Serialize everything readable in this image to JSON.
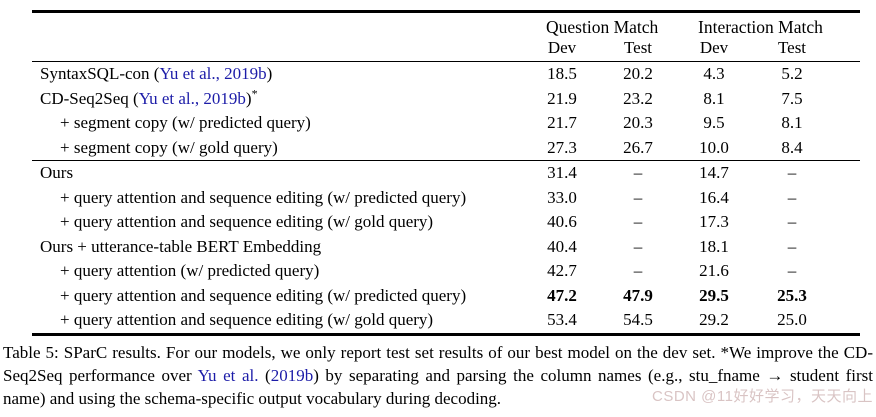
{
  "table": {
    "group_headers": [
      "Question Match",
      "Interaction Match"
    ],
    "sub_headers": [
      "Dev",
      "Test",
      "Dev",
      "Test"
    ],
    "groups": [
      {
        "rows": [
          {
            "label": "SyntaxSQL-con (",
            "cite": "Yu et al., 2019b",
            "label_end": ")",
            "indent": false,
            "bold": false,
            "values": [
              "18.5",
              "20.2",
              "4.3",
              "5.2"
            ]
          },
          {
            "label": "CD-Seq2Seq (",
            "cite": "Yu et al., 2019b",
            "label_end": ")",
            "sup": "*",
            "indent": false,
            "bold": false,
            "values": [
              "21.9",
              "23.2",
              "8.1",
              "7.5"
            ]
          },
          {
            "label": "+ segment copy (w/ predicted query)",
            "indent": true,
            "bold": false,
            "values": [
              "21.7",
              "20.3",
              "9.5",
              "8.1"
            ]
          },
          {
            "label": "+ segment copy (w/ gold query)",
            "indent": true,
            "bold": false,
            "values": [
              "27.3",
              "26.7",
              "10.0",
              "8.4"
            ]
          }
        ]
      },
      {
        "rows": [
          {
            "label": "Ours",
            "indent": false,
            "bold": false,
            "values": [
              "31.4",
              "–",
              "14.7",
              "–"
            ]
          },
          {
            "label": "+ query attention and sequence editing (w/ predicted query)",
            "indent": true,
            "bold": false,
            "values": [
              "33.0",
              "–",
              "16.4",
              "–"
            ]
          },
          {
            "label": "+ query attention and sequence editing (w/ gold query)",
            "indent": true,
            "bold": false,
            "values": [
              "40.6",
              "–",
              "17.3",
              "–"
            ]
          },
          {
            "label": "Ours + utterance-table BERT Embedding",
            "indent": false,
            "bold": false,
            "values": [
              "40.4",
              "–",
              "18.1",
              "–"
            ]
          },
          {
            "label": "+ query attention (w/ predicted query)",
            "indent": true,
            "bold": false,
            "values": [
              "42.7",
              "–",
              "21.6",
              "–"
            ]
          },
          {
            "label": "+ query attention and sequence editing (w/ predicted query)",
            "indent": true,
            "bold": true,
            "values": [
              "47.2",
              "47.9",
              "29.5",
              "25.3"
            ]
          },
          {
            "label": "+ query attention and sequence editing (w/ gold query)",
            "indent": true,
            "bold": false,
            "values": [
              "53.4",
              "54.5",
              "29.2",
              "25.0"
            ]
          }
        ]
      }
    ]
  },
  "caption": {
    "part1": "Table 5: SParC results. For our models, we only report test set results of our best model on the dev set. *We improve the CD-Seq2Seq performance over ",
    "cite_author": "Yu et al.",
    "part2": " (",
    "cite_year": "2019b",
    "part3": ") by separating and parsing the column names (e.g., stu_fname → student first name) and using the schema-specific output vocabulary during decoding."
  },
  "watermark": "CSDN @11好好学习，天天向上",
  "colors": {
    "link_blue": "#1c1ca8",
    "watermark": "#c4a4a4",
    "text": "#000000",
    "background": "#ffffff"
  }
}
